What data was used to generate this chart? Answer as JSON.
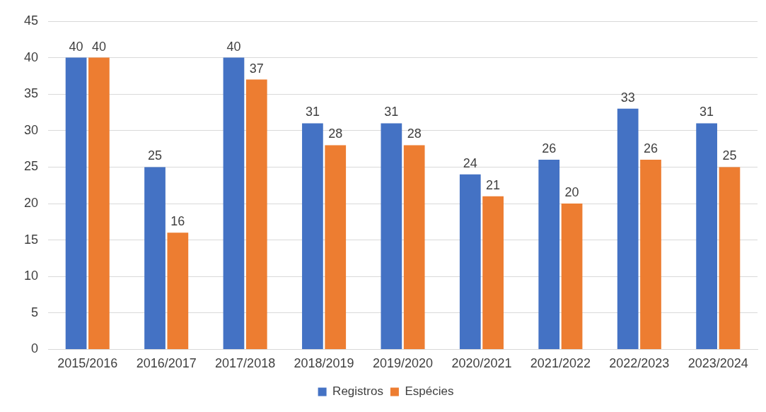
{
  "chart_data": {
    "type": "bar",
    "categories": [
      "2015/2016",
      "2016/2017",
      "2017/2018",
      "2018/2019",
      "2019/2020",
      "2020/2021",
      "2021/2022",
      "2022/2023",
      "2023/2024"
    ],
    "series": [
      {
        "name": "Registros",
        "color": "#4472c4",
        "values": [
          40,
          25,
          40,
          31,
          31,
          24,
          26,
          33,
          31
        ]
      },
      {
        "name": "Espécies",
        "color": "#ed7d31",
        "values": [
          40,
          16,
          37,
          28,
          28,
          21,
          20,
          26,
          25
        ]
      }
    ],
    "ylim": [
      0,
      45
    ],
    "yticks": [
      0,
      5,
      10,
      15,
      20,
      25,
      30,
      35,
      40,
      45
    ],
    "grid": "y",
    "legend": "bottom",
    "data_labels": true
  }
}
